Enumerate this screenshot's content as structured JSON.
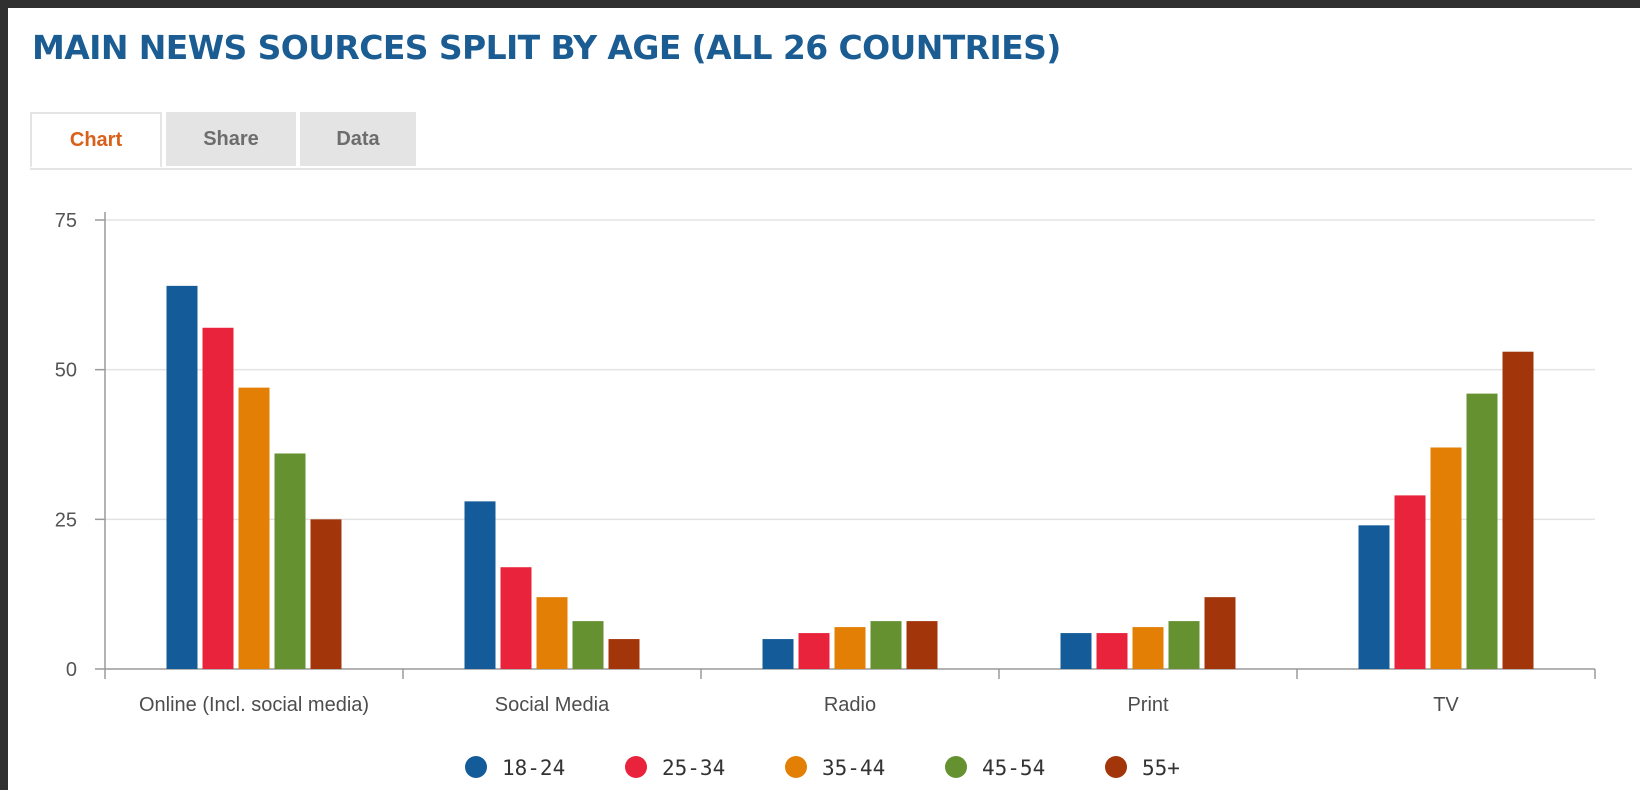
{
  "page": {
    "title": "MAIN NEWS SOURCES SPLIT BY AGE (ALL 26 COUNTRIES)",
    "tabs": [
      {
        "label": "Chart",
        "active": true
      },
      {
        "label": "Share",
        "active": false
      },
      {
        "label": "Data",
        "active": false
      }
    ]
  },
  "chart_data": {
    "type": "bar",
    "title": "MAIN NEWS SOURCES SPLIT BY AGE (ALL 26 COUNTRIES)",
    "xlabel": "",
    "ylabel": "",
    "ylim": [
      0,
      75
    ],
    "yticks": [
      0,
      25,
      50,
      75
    ],
    "grid": true,
    "legend_position": "bottom",
    "categories": [
      "Online (Incl. social media)",
      "Social Media",
      "Radio",
      "Print",
      "TV"
    ],
    "series": [
      {
        "name": "18-24",
        "color": "#135b99",
        "values": [
          64,
          28,
          5,
          6,
          24
        ]
      },
      {
        "name": "25-34",
        "color": "#e8233b",
        "values": [
          57,
          17,
          6,
          6,
          29
        ]
      },
      {
        "name": "35-44",
        "color": "#e47f05",
        "values": [
          47,
          12,
          7,
          7,
          37
        ]
      },
      {
        "name": "45-54",
        "color": "#659130",
        "values": [
          36,
          8,
          8,
          8,
          46
        ]
      },
      {
        "name": "55+",
        "color": "#a2350a",
        "values": [
          25,
          5,
          8,
          12,
          53
        ]
      }
    ]
  }
}
